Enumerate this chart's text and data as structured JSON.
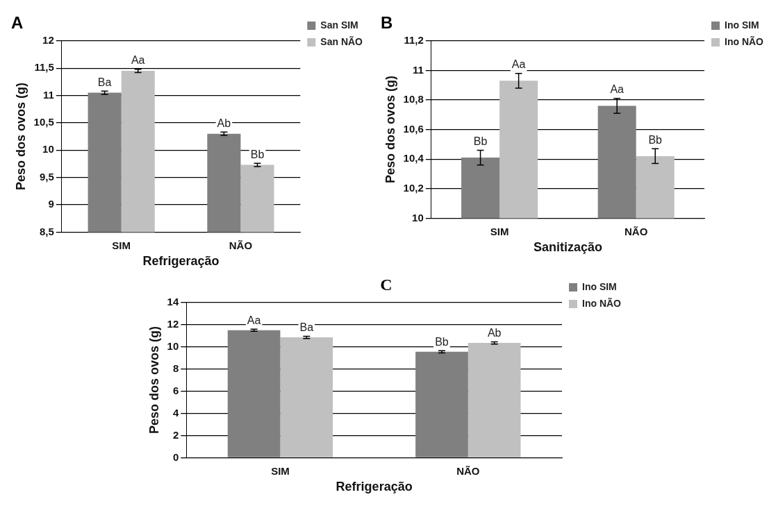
{
  "chart_data": [
    {
      "type": "bar",
      "title": "A",
      "xlabel": "Refrigeração",
      "ylabel": "Peso dos ovos (g)",
      "categories": [
        "SIM",
        "NÃO"
      ],
      "ylim": [
        8.5,
        12
      ],
      "yticks": [
        {
          "value": 8.5,
          "label": "8,5"
        },
        9,
        {
          "value": 9.5,
          "label": "9,5"
        },
        10,
        {
          "value": 10.5,
          "label": "10,5"
        },
        11,
        {
          "value": 11.5,
          "label": "11,5"
        },
        12
      ],
      "grid": "y",
      "legend": "top right",
      "series": [
        {
          "name": "San SIM",
          "color": "#808080",
          "values": [
            11.05,
            10.3
          ],
          "errors": [
            0.03,
            0.03
          ],
          "value_labels": [
            "Ba",
            "Ab"
          ]
        },
        {
          "name": "San NÃO",
          "color": "#c0c0c0",
          "values": [
            11.45,
            9.73
          ],
          "errors": [
            0.03,
            0.03
          ],
          "value_labels": [
            "Aa",
            "Bb"
          ]
        }
      ]
    },
    {
      "type": "bar",
      "title": "B",
      "xlabel": "Sanitização",
      "ylabel": "Peso dos ovos (g)",
      "categories": [
        "SIM",
        "NÃO"
      ],
      "ylim": [
        10,
        11.2
      ],
      "yticks": [
        10,
        {
          "value": 10.2,
          "label": "10,2"
        },
        {
          "value": 10.4,
          "label": "10,4"
        },
        {
          "value": 10.6,
          "label": "10,6"
        },
        {
          "value": 10.8,
          "label": "10,8"
        },
        11,
        {
          "value": 11.2,
          "label": "11,2"
        }
      ],
      "grid": "y",
      "legend": "top right",
      "series": [
        {
          "name": "Ino SIM",
          "color": "#808080",
          "values": [
            10.41,
            10.76
          ],
          "errors": [
            0.05,
            0.05
          ],
          "value_labels": [
            "Bb",
            "Aa"
          ]
        },
        {
          "name": "Ino NÃO",
          "color": "#c0c0c0",
          "values": [
            10.93,
            10.42
          ],
          "errors": [
            0.05,
            0.05
          ],
          "value_labels": [
            "Aa",
            "Bb"
          ]
        }
      ]
    },
    {
      "type": "bar",
      "title": "C",
      "xlabel": "Refrigeração",
      "ylabel": "Peso dos ovos (g)",
      "categories": [
        "SIM",
        "NÃO"
      ],
      "ylim": [
        0,
        14
      ],
      "yticks": [
        0,
        2,
        4,
        6,
        8,
        10,
        12,
        14
      ],
      "grid": "y",
      "legend": "top right",
      "series": [
        {
          "name": "Ino SIM",
          "color": "#808080",
          "values": [
            11.5,
            9.55
          ],
          "errors": [
            0.1,
            0.1
          ],
          "value_labels": [
            "Aa",
            "Bb"
          ]
        },
        {
          "name": "Ino NÃO",
          "color": "#c0c0c0",
          "values": [
            10.85,
            10.35
          ],
          "errors": [
            0.1,
            0.1
          ],
          "value_labels": [
            "Ba",
            "Ab"
          ]
        }
      ]
    }
  ]
}
